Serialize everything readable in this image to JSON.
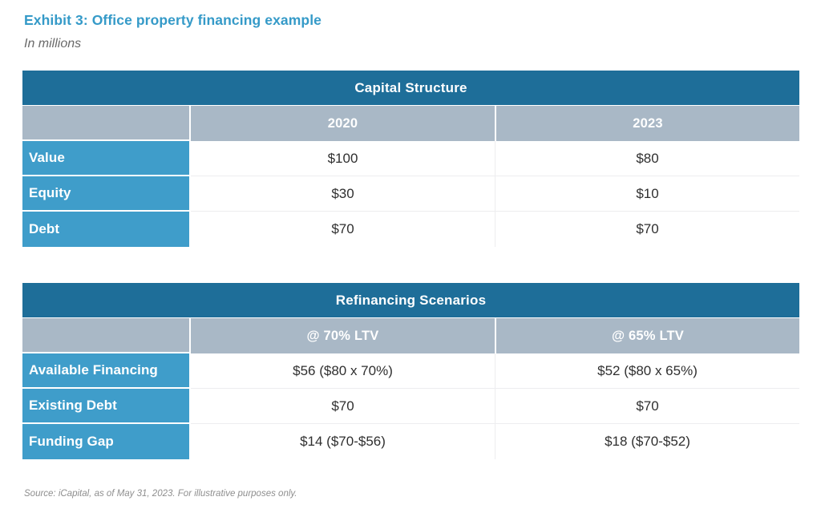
{
  "page": {
    "title": "Exhibit 3: Office property financing example",
    "subtitle": "In millions",
    "source_note": "Source: iCapital, as of May 31, 2023. For illustrative purposes only."
  },
  "colors": {
    "title_accent": "#359ac8",
    "table_header_bg": "#1e6e99",
    "column_header_bg": "#a9b8c6",
    "row_label_bg": "#3f9dca",
    "data_text": "#2f2f2f"
  },
  "tables": [
    {
      "title": "Capital Structure",
      "columns": [
        "2020",
        "2023"
      ],
      "rows": [
        {
          "label": "Value",
          "values": [
            "$100",
            "$80"
          ]
        },
        {
          "label": "Equity",
          "values": [
            "$30",
            "$10"
          ]
        },
        {
          "label": "Debt",
          "values": [
            "$70",
            "$70"
          ]
        }
      ]
    },
    {
      "title": "Refinancing Scenarios",
      "columns": [
        "@ 70% LTV",
        "@ 65% LTV"
      ],
      "rows": [
        {
          "label": "Available Financing",
          "values": [
            "$56 ($80 x 70%)",
            "$52 ($80 x 65%)"
          ]
        },
        {
          "label": "Existing Debt",
          "values": [
            "$70",
            "$70"
          ]
        },
        {
          "label": "Funding Gap",
          "values": [
            "$14 ($70-$56)",
            "$18 ($70-$52)"
          ]
        }
      ]
    }
  ]
}
